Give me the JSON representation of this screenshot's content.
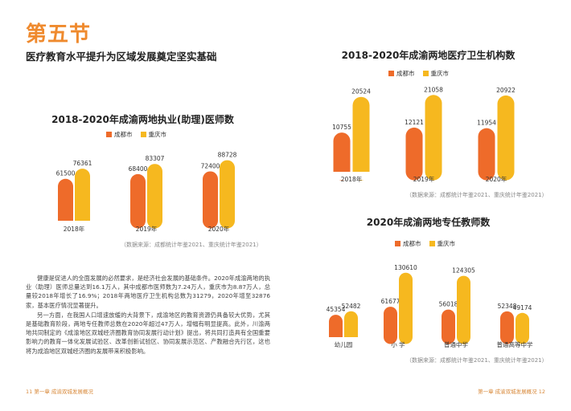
{
  "colors": {
    "chengdu": "#ee6b2a",
    "chongqing": "#f6b81f",
    "accent": "#ef8a2e"
  },
  "left": {
    "section_title": "第五节",
    "section_subtitle": "医疗教育水平提升为区域发展奠定坚实基础",
    "paragraphs": [
      "健康是促进人的全面发展的必然要求，是经济社会发展的基础条件。2020年成渝两地的执业（助理）医师总量达到16.1万人，其中成都市医师数为7.24万人，重庆市为8.87万人，总量较2018年增长了16.9%；2018年两地医疗卫生机构总数为31279，2020年增至32876家，基本医疗情况显著提升。",
      "另一方面，在我国人口增速放缓的大背景下，成渝地区的教育资源仍具备较大优势，尤其是基础教育阶段，两地专任教师总数在2020年超过47万人，增幅有明显提高。此外，川渝两地共同制定的《成渝地区双城经济圈教育协同发展行动计划》提出，将共同打造具有全国重要影响力的教育一体化发展试验区、改革创新试验区、协同发展示范区、产教融合先行区，这也将为成渝地区双城经济圈的发展带来积极影响。"
    ],
    "footer": "11  第一章  成渝双城发展概况"
  },
  "right": {
    "footer": "第一章  成渝双城发展概况  12"
  },
  "chart_data": [
    {
      "type": "bar",
      "title": "2018-2020年成渝两地执业(助理)医师数",
      "categories": [
        "2018年",
        "2019年",
        "2020年"
      ],
      "series": [
        {
          "name": "成都市",
          "values": [
            61500,
            68400,
            72400
          ]
        },
        {
          "name": "重庆市",
          "values": [
            76361,
            83307,
            88728
          ]
        }
      ],
      "ylim": [
        0,
        100000
      ],
      "grid": false,
      "legend": "top-left",
      "source": "（数据来源：成都统计年鉴2021、重庆统计年鉴2021）"
    },
    {
      "type": "bar",
      "title": "2018-2020年成渝两地医疗卫生机构数",
      "categories": [
        "2018年",
        "2019年",
        "2020年"
      ],
      "series": [
        {
          "name": "成都市",
          "values": [
            10755,
            12121,
            11954
          ]
        },
        {
          "name": "重庆市",
          "values": [
            20524,
            21058,
            20922
          ]
        }
      ],
      "ylim": [
        0,
        22000
      ],
      "grid": false,
      "legend": "top-center",
      "source": "（数据来源：成都统计年鉴2021、重庆统计年鉴2021）"
    },
    {
      "type": "bar",
      "title": "2020年成渝两地专任教师数",
      "categories": [
        "幼儿园",
        "小 学",
        "普通中学",
        "普通高等中学"
      ],
      "series": [
        {
          "name": "成都市",
          "values": [
            45354,
            61677,
            56018,
            52348
          ]
        },
        {
          "name": "重庆市",
          "values": [
            52482,
            130610,
            124305,
            49174
          ]
        }
      ],
      "ylim": [
        0,
        140000
      ],
      "grid": false,
      "legend": "top-center",
      "source": "（数据来源：成都统计年鉴2021、重庆统计年鉴2021）"
    }
  ]
}
